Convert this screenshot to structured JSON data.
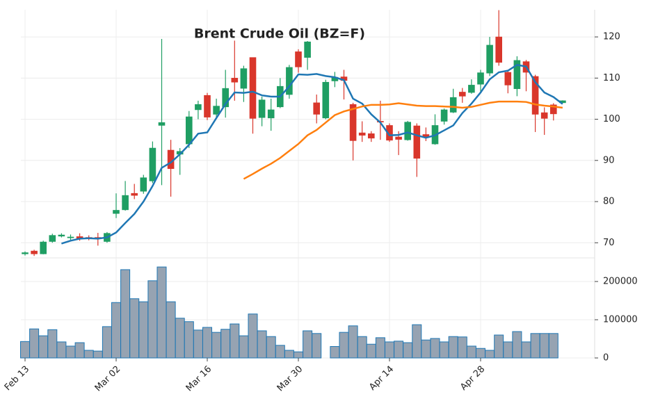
{
  "chart_data": {
    "type": "candlestick",
    "title": "Brent Crude Oil (BZ=F)",
    "categories": [
      "Feb 13",
      null,
      null,
      null,
      null,
      null,
      null,
      null,
      null,
      null,
      "Mar 02",
      null,
      null,
      null,
      null,
      null,
      null,
      null,
      null,
      null,
      "Mar 16",
      null,
      null,
      null,
      null,
      null,
      null,
      null,
      null,
      null,
      "Mar 30",
      null,
      null,
      null,
      null,
      null,
      null,
      null,
      null,
      null,
      "Apr 14",
      null,
      null,
      null,
      null,
      null,
      null,
      null,
      null,
      null,
      "Apr 28",
      null,
      null,
      null,
      null,
      null,
      null,
      null,
      null,
      null
    ],
    "open": [
      67.3,
      68,
      67.3,
      70.3,
      71.6,
      71.2,
      71.5,
      71.3,
      71.3,
      70.3,
      77.1,
      78,
      82,
      82.5,
      85,
      98.5,
      92.5,
      91.5,
      94,
      102.3,
      105.8,
      101.2,
      103,
      110,
      107.5,
      115,
      100.4,
      100.3,
      103,
      106,
      116.4,
      115,
      104,
      100.3,
      109.3,
      110.3,
      103.6,
      96.7,
      96.5,
      99.5,
      98.5,
      95.7,
      95,
      98.4,
      96.3,
      94,
      99.5,
      101.7,
      106.6,
      106.5,
      108.5,
      111.2,
      120,
      111.4,
      107.4,
      114,
      110.4,
      101.6,
      103.5,
      104
    ],
    "high": [
      67.9,
      68.3,
      70.5,
      72.2,
      72.3,
      72,
      72.3,
      71.8,
      72.4,
      72.6,
      82,
      85,
      84.3,
      86.5,
      94.6,
      119.5,
      95,
      93,
      102,
      104.5,
      106.4,
      105,
      112,
      119.1,
      113,
      115,
      105.5,
      105,
      110,
      113.2,
      117,
      119,
      106,
      109.6,
      111.5,
      112,
      104,
      99.5,
      97.1,
      104.5,
      99,
      97.1,
      99.6,
      99,
      98,
      101.2,
      102.6,
      107.4,
      107.6,
      109.7,
      112,
      120,
      126.5,
      112,
      115.3,
      114.4,
      110.8,
      102.9,
      103.9,
      104.6
    ],
    "low": [
      66.9,
      66.8,
      67.2,
      70,
      71.3,
      70.7,
      70.5,
      70.6,
      69.3,
      70,
      76,
      77.8,
      80.6,
      81.9,
      84.5,
      84,
      81.2,
      86.5,
      93,
      100,
      99.8,
      100.3,
      100.4,
      104.5,
      104.2,
      96.5,
      98.3,
      97.2,
      102.7,
      105,
      111.3,
      112,
      99,
      100,
      107.8,
      104.8,
      90,
      94.5,
      94.5,
      95,
      94.5,
      91.3,
      94.8,
      86,
      94.7,
      93.8,
      98.7,
      101.5,
      104,
      106.2,
      106.7,
      110.5,
      113,
      106.3,
      105.6,
      106.8,
      96.9,
      96.2,
      99.7,
      104
    ],
    "close": [
      67.6,
      67.3,
      70.2,
      71.8,
      71.9,
      71.4,
      71,
      71,
      71,
      72.3,
      77.9,
      81.5,
      81.5,
      85.8,
      93,
      99.2,
      88,
      92.2,
      100.6,
      103.6,
      100.5,
      103.2,
      107.5,
      109,
      112.3,
      100.2,
      104.7,
      102.3,
      108,
      112.6,
      112.7,
      118.8,
      101.2,
      109,
      110.2,
      109.4,
      94.8,
      96.1,
      95.4,
      99.3,
      94.9,
      95.1,
      99.3,
      90.5,
      95.6,
      98.5,
      102.3,
      105.3,
      105.6,
      108.3,
      111.3,
      118,
      113.8,
      108.3,
      114.3,
      111.4,
      101.2,
      100.2,
      101.3,
      104.5
    ],
    "up_color": "#1f9e63",
    "down_color": "#d9362b",
    "ylim": [
      66.5,
      126.6
    ],
    "yticks": [
      70,
      80,
      90,
      100,
      110,
      120
    ],
    "grid": true,
    "series": [
      {
        "color": "#1f77b4",
        "values": [
          null,
          null,
          null,
          null,
          69.8,
          70.5,
          71,
          71.1,
          71,
          71.3,
          72.5,
          74.8,
          77,
          80,
          83.8,
          88.2,
          89.5,
          91.5,
          93.8,
          96.5,
          96.8,
          100.3,
          103.7,
          106.5,
          106.4,
          106.7,
          105.8,
          105.5,
          105.5,
          108,
          110.9,
          110.8,
          111,
          110.5,
          110.2,
          109.5,
          105,
          103.8,
          101.2,
          99.2,
          96.1,
          96.2,
          96.8,
          96.1,
          95.5,
          96.1,
          97.3,
          98.5,
          101.5,
          103.8,
          106.5,
          109.7,
          111.4,
          111.8,
          113.2,
          112.8,
          109,
          106.5,
          105.4,
          103.7
        ]
      },
      {
        "color": "#ff7f0e",
        "values": [
          null,
          null,
          null,
          null,
          null,
          null,
          null,
          null,
          null,
          null,
          null,
          null,
          null,
          null,
          null,
          null,
          null,
          null,
          null,
          null,
          null,
          null,
          null,
          null,
          85.5,
          86.7,
          88,
          89.2,
          90.6,
          92.3,
          94,
          96.1,
          97.4,
          99.2,
          101,
          101.9,
          102.5,
          103.1,
          103.5,
          103.5,
          103.6,
          103.9,
          103.6,
          103.3,
          103.2,
          103.2,
          103.1,
          103,
          102.8,
          103,
          103.5,
          104,
          104.3,
          104.3,
          104.3,
          104.2,
          103.6,
          103.3,
          103.1,
          102.8
        ]
      }
    ],
    "volume": {
      "color": "#96a3b2",
      "edge_color": "#1f77b4",
      "values": [
        43000,
        76000,
        58000,
        74000,
        42000,
        31000,
        40000,
        20000,
        18000,
        82000,
        145000,
        231000,
        155000,
        147000,
        202000,
        238000,
        147000,
        104000,
        95000,
        73000,
        80000,
        67000,
        75000,
        89000,
        58000,
        115000,
        71000,
        56000,
        33000,
        20000,
        16000,
        71000,
        64000,
        null,
        30000,
        67000,
        84000,
        56000,
        36000,
        53000,
        42000,
        44000,
        40000,
        87000,
        47000,
        51000,
        42000,
        56000,
        55000,
        31000,
        25000,
        20000,
        60000,
        42000,
        69000,
        42000,
        64000,
        64000,
        64000,
        null
      ],
      "ylim": [
        0,
        260000
      ],
      "yticks": [
        0,
        100000,
        200000
      ]
    }
  }
}
